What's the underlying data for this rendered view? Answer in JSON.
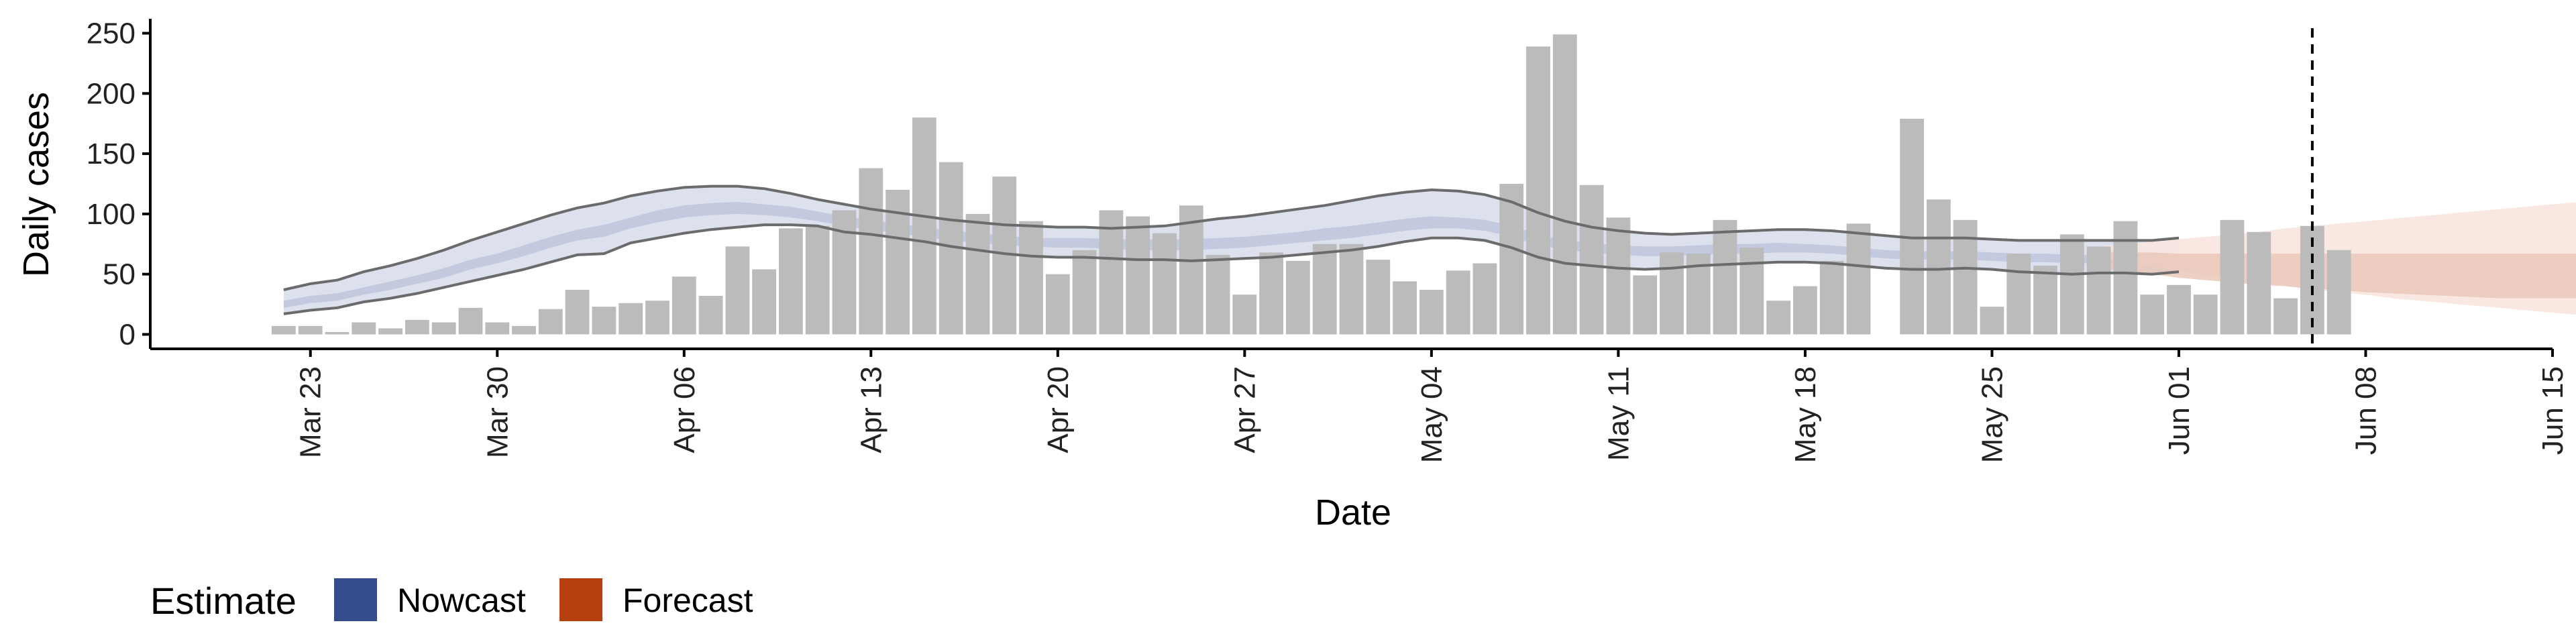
{
  "chart_data": {
    "type": "bar",
    "xlabel": "Date",
    "ylabel": "Daily cases",
    "ylim": [
      -12,
      262
    ],
    "y_ticks": [
      "0",
      "50",
      "100",
      "150",
      "200",
      "250"
    ],
    "x_range": [
      "2020-03-17",
      "2020-06-15"
    ],
    "x_ticks": [
      {
        "date": "2020-03-23",
        "label": "Mar 23"
      },
      {
        "date": "2020-03-30",
        "label": "Mar 30"
      },
      {
        "date": "2020-04-06",
        "label": "Apr 06"
      },
      {
        "date": "2020-04-13",
        "label": "Apr 13"
      },
      {
        "date": "2020-04-20",
        "label": "Apr 20"
      },
      {
        "date": "2020-04-27",
        "label": "Apr 27"
      },
      {
        "date": "2020-05-04",
        "label": "May 04"
      },
      {
        "date": "2020-05-11",
        "label": "May 11"
      },
      {
        "date": "2020-05-18",
        "label": "May 18"
      },
      {
        "date": "2020-05-25",
        "label": "May 25"
      },
      {
        "date": "2020-06-01",
        "label": "Jun 01"
      },
      {
        "date": "2020-06-08",
        "label": "Jun 08"
      },
      {
        "date": "2020-06-15",
        "label": "Jun 15"
      }
    ],
    "bar_color": "#bbbbbb",
    "bars": {
      "start_date": "2020-03-22",
      "values": [
        7,
        7,
        2,
        10,
        5,
        12,
        10,
        22,
        10,
        7,
        21,
        37,
        23,
        26,
        28,
        48,
        32,
        73,
        54,
        88,
        90,
        103,
        138,
        120,
        180,
        143,
        100,
        131,
        94,
        50,
        70,
        103,
        98,
        84,
        107,
        66,
        33,
        68,
        61,
        75,
        75,
        62,
        44,
        37,
        53,
        59,
        125,
        239,
        249,
        124,
        97,
        49,
        68,
        67,
        95,
        72,
        28,
        40,
        61,
        92,
        null,
        179,
        112,
        95,
        23,
        67,
        57,
        83,
        73,
        94,
        33,
        41,
        33,
        95,
        85,
        30,
        90,
        70
      ]
    },
    "estimate_band": {
      "start_date": "2020-03-22",
      "outer_low": [
        17,
        20,
        22,
        27,
        30,
        34,
        39,
        44,
        49,
        54,
        60,
        66,
        67,
        76,
        80,
        84,
        87,
        89,
        91,
        91,
        90,
        85,
        83,
        80,
        77,
        73,
        70,
        67,
        65,
        64,
        64,
        63,
        62,
        62,
        61,
        62,
        63,
        64,
        66,
        68,
        70,
        73,
        77,
        80,
        80,
        78,
        72,
        64,
        59,
        57,
        55,
        54,
        55,
        57,
        58,
        59,
        60,
        60,
        59,
        57,
        55,
        54,
        54,
        55,
        54,
        52,
        51,
        50,
        51,
        51,
        50,
        52
      ],
      "inner_low": [
        22,
        26,
        28,
        33,
        37,
        42,
        47,
        54,
        59,
        65,
        72,
        78,
        81,
        88,
        93,
        97,
        99,
        100,
        99,
        97,
        94,
        90,
        87,
        84,
        81,
        78,
        76,
        74,
        73,
        72,
        72,
        71,
        70,
        70,
        70,
        71,
        72,
        74,
        76,
        78,
        80,
        83,
        86,
        88,
        88,
        86,
        81,
        74,
        70,
        68,
        66,
        65,
        65,
        66,
        67,
        67,
        68,
        68,
        67,
        65,
        63,
        62,
        62,
        62,
        61,
        60,
        60,
        59,
        59,
        60,
        59,
        60
      ],
      "inner_high": [
        28,
        32,
        34,
        39,
        44,
        49,
        55,
        62,
        67,
        74,
        81,
        87,
        91,
        97,
        103,
        107,
        109,
        110,
        108,
        106,
        102,
        98,
        95,
        92,
        89,
        86,
        84,
        82,
        80,
        80,
        80,
        79,
        79,
        79,
        79,
        80,
        81,
        83,
        85,
        88,
        90,
        93,
        96,
        98,
        97,
        95,
        90,
        83,
        78,
        76,
        74,
        73,
        73,
        74,
        75,
        75,
        76,
        75,
        74,
        72,
        70,
        69,
        69,
        69,
        68,
        67,
        67,
        66,
        66,
        67,
        66,
        67
      ],
      "outer_high": [
        37,
        42,
        45,
        52,
        57,
        63,
        70,
        78,
        85,
        92,
        99,
        105,
        109,
        115,
        119,
        122,
        123,
        123,
        121,
        117,
        112,
        108,
        104,
        101,
        98,
        95,
        93,
        91,
        90,
        89,
        89,
        88,
        89,
        90,
        93,
        96,
        98,
        101,
        104,
        107,
        111,
        115,
        118,
        120,
        119,
        116,
        110,
        101,
        94,
        89,
        86,
        84,
        83,
        84,
        85,
        86,
        87,
        87,
        86,
        84,
        82,
        80,
        80,
        80,
        79,
        78,
        78,
        78,
        78,
        78,
        78,
        80
      ],
      "outer_color": "#dde1ee",
      "inner_color": "#c3cadf",
      "line_color": "#6b6b6b"
    },
    "forecast_band": {
      "start_date": "2020-05-29",
      "outer_low": [
        63,
        60,
        56,
        53,
        49,
        46,
        43,
        40,
        37,
        35,
        33,
        30,
        28,
        26,
        24,
        22,
        20,
        18,
        16,
        15
      ],
      "inner_low": [
        55,
        52,
        50,
        47,
        45,
        43,
        41,
        40,
        38,
        37,
        35,
        34,
        33,
        32,
        31,
        30,
        30,
        30,
        30,
        30
      ],
      "inner_high": [
        69,
        68,
        68,
        67,
        67,
        67,
        67,
        67,
        67,
        67,
        67,
        67,
        67,
        67,
        67,
        67,
        67,
        67,
        67,
        67
      ],
      "outer_high": [
        73,
        75,
        77,
        79,
        81,
        83,
        85,
        88,
        90,
        92,
        94,
        96,
        98,
        100,
        102,
        104,
        106,
        108,
        110,
        112
      ],
      "outer_color": "#f8e6df",
      "inner_color": "#e8c5b6"
    },
    "forecast_date_line": "2020-06-06",
    "legend": {
      "title": "Estimate",
      "position": "bottom-left",
      "items": [
        {
          "label": "Nowcast",
          "color": "#344d8a"
        },
        {
          "label": "Forecast",
          "color": "#b53f0e"
        }
      ]
    },
    "grid": false
  }
}
